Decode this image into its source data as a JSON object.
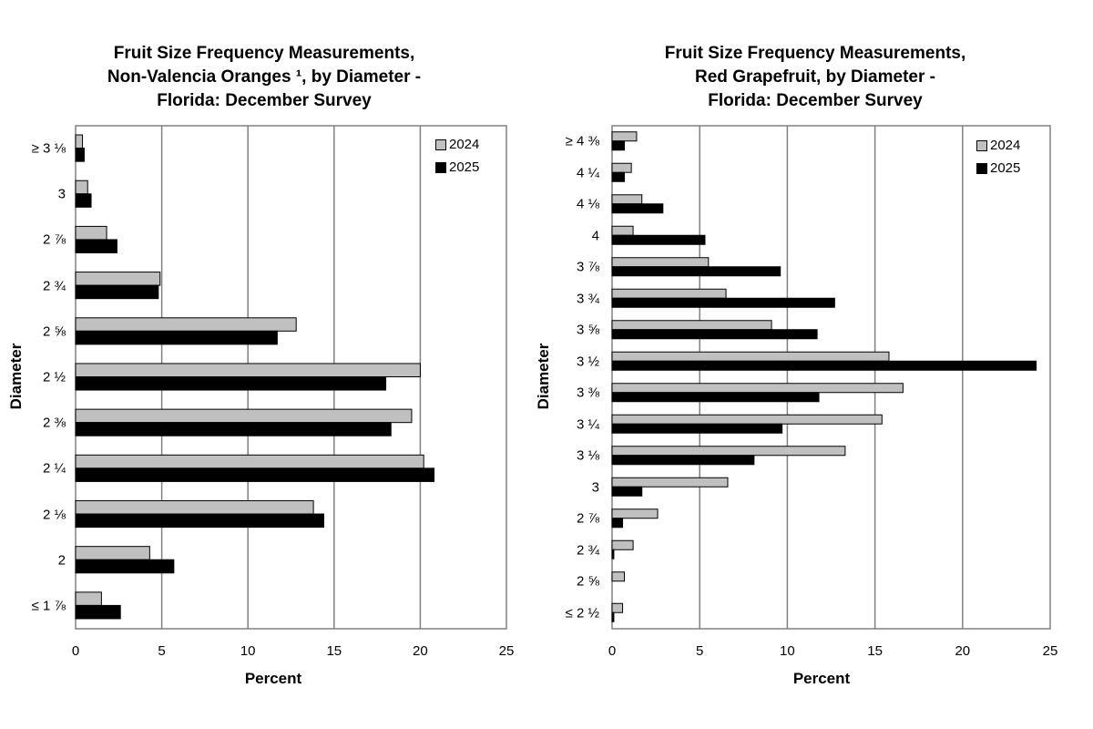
{
  "charts": [
    {
      "title_lines": [
        "Fruit Size Frequency Measurements,",
        "Non-Valencia Oranges ¹, by Diameter -",
        "Florida: December Survey"
      ],
      "xlabel": "Percent",
      "ylabel": "Diameter",
      "legend": [
        "2024",
        "2025"
      ]
    },
    {
      "title_lines": [
        "Fruit Size Frequency Measurements,",
        "Red Grapefruit, by Diameter -",
        "Florida: December Survey"
      ],
      "xlabel": "Percent",
      "ylabel": "Diameter",
      "legend": [
        "2024",
        "2025"
      ]
    }
  ],
  "chart_data": [
    {
      "type": "bar",
      "orientation": "horizontal",
      "title": "Fruit Size Frequency Measurements, Non-Valencia Oranges ¹, by Diameter - Florida: December Survey",
      "xlabel": "Percent",
      "ylabel": "Diameter",
      "xlim": [
        0,
        25
      ],
      "xticks": [
        "0",
        "5",
        "10",
        "15",
        "20",
        "25"
      ],
      "grid": "vertical",
      "legend_position": "top-right",
      "categories": [
        "≥ 3 ⅛",
        "3",
        "2 ⅞",
        "2 ¾",
        "2 ⅝",
        "2 ½",
        "2 ⅜",
        "2 ¼",
        "2 ⅛",
        "2",
        "≤ 1 ⅞"
      ],
      "series": [
        {
          "name": "2024",
          "color": "#c0c0c0",
          "values": [
            0.4,
            0.7,
            1.8,
            4.9,
            12.8,
            20.0,
            19.5,
            20.2,
            13.8,
            4.3,
            1.5
          ]
        },
        {
          "name": "2025",
          "color": "#000000",
          "values": [
            0.5,
            0.9,
            2.4,
            4.8,
            11.7,
            18.0,
            18.3,
            20.8,
            14.4,
            5.7,
            2.6
          ]
        }
      ]
    },
    {
      "type": "bar",
      "orientation": "horizontal",
      "title": "Fruit Size Frequency Measurements, Red Grapefruit, by Diameter - Florida: December Survey",
      "xlabel": "Percent",
      "ylabel": "Diameter",
      "xlim": [
        0,
        25
      ],
      "xticks": [
        "0",
        "5",
        "10",
        "15",
        "20",
        "25"
      ],
      "grid": "vertical",
      "legend_position": "top-right",
      "categories": [
        "≥ 4 ⅜",
        "4 ¼",
        "4 ⅛",
        "4",
        "3 ⅞",
        "3 ¾",
        "3 ⅝",
        "3 ½",
        "3 ⅜",
        "3 ¼",
        "3 ⅛",
        "3",
        "2 ⅞",
        "2 ¾",
        "2 ⅝",
        "≤ 2 ½"
      ],
      "series": [
        {
          "name": "2024",
          "color": "#c0c0c0",
          "values": [
            1.4,
            1.1,
            1.7,
            1.2,
            5.5,
            6.5,
            9.1,
            15.8,
            16.6,
            15.4,
            13.3,
            6.6,
            2.6,
            1.2,
            0.7,
            0.6
          ]
        },
        {
          "name": "2025",
          "color": "#000000",
          "values": [
            0.7,
            0.7,
            2.9,
            5.3,
            9.6,
            12.7,
            11.7,
            24.2,
            11.8,
            9.7,
            8.1,
            1.7,
            0.6,
            0.1,
            0.0,
            0.1
          ]
        }
      ]
    }
  ]
}
